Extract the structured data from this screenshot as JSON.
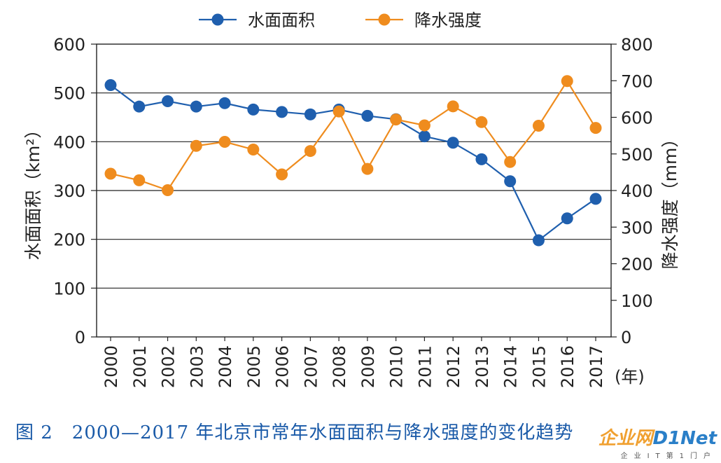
{
  "chart_data": {
    "type": "line",
    "categories": [
      "2000",
      "2001",
      "2002",
      "2003",
      "2004",
      "2005",
      "2006",
      "2007",
      "2008",
      "2009",
      "2010",
      "2011",
      "2012",
      "2013",
      "2014",
      "2015",
      "2016",
      "2017"
    ],
    "x_unit": "(年)",
    "ylabel_left": "水面面积（km²）",
    "ylabel_right": "降水强度（mm）",
    "ylim_left": [
      0,
      600
    ],
    "ylim_right": [
      0,
      800
    ],
    "yticks_left": [
      "0",
      "100",
      "200",
      "300",
      "400",
      "500",
      "600"
    ],
    "yticks_right": [
      "0",
      "100",
      "200",
      "300",
      "400",
      "500",
      "600",
      "700",
      "800"
    ],
    "grid": true,
    "legend_position": "top-center",
    "series": [
      {
        "name": "水面面积",
        "axis": "left",
        "color": "#1f5fae",
        "values": [
          516,
          472,
          483,
          472,
          479,
          466,
          461,
          456,
          466,
          453,
          446,
          411,
          398,
          364,
          319,
          198,
          243,
          283
        ]
      },
      {
        "name": "降水强度",
        "axis": "right",
        "color": "#ef8c1e",
        "values": [
          446,
          428,
          401,
          522,
          533,
          512,
          444,
          508,
          616,
          459,
          594,
          578,
          630,
          587,
          478,
          577,
          699,
          571
        ]
      }
    ]
  },
  "caption": "图 2　2000—2017 年北京市常年水面面积与降水强度的变化趋势",
  "watermark": {
    "logo_left": "企业网",
    "logo_right": "D1Net",
    "sub": "企业IT第1门户"
  }
}
